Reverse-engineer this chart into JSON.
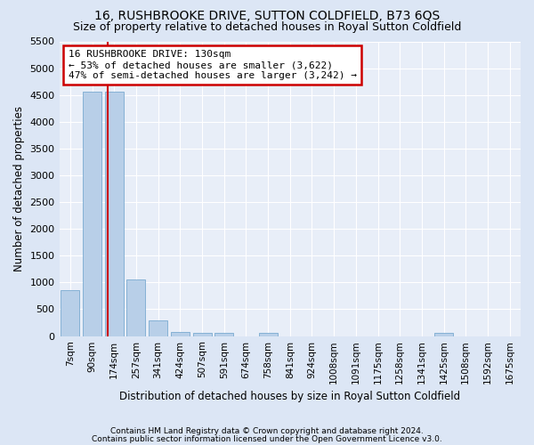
{
  "title": "16, RUSHBROOKE DRIVE, SUTTON COLDFIELD, B73 6QS",
  "subtitle": "Size of property relative to detached houses in Royal Sutton Coldfield",
  "xlabel": "Distribution of detached houses by size in Royal Sutton Coldfield",
  "ylabel": "Number of detached properties",
  "footnote1": "Contains HM Land Registry data © Crown copyright and database right 2024.",
  "footnote2": "Contains public sector information licensed under the Open Government Licence v3.0.",
  "bar_labels": [
    "7sqm",
    "90sqm",
    "174sqm",
    "257sqm",
    "341sqm",
    "424sqm",
    "507sqm",
    "591sqm",
    "674sqm",
    "758sqm",
    "841sqm",
    "924sqm",
    "1008sqm",
    "1091sqm",
    "1175sqm",
    "1258sqm",
    "1341sqm",
    "1425sqm",
    "1508sqm",
    "1592sqm",
    "1675sqm"
  ],
  "bar_values": [
    850,
    4560,
    4560,
    1060,
    290,
    80,
    60,
    55,
    0,
    60,
    0,
    0,
    0,
    0,
    0,
    0,
    0,
    55,
    0,
    0,
    0
  ],
  "bar_color": "#b8cfe8",
  "bar_edge_color": "#7aaad0",
  "vline_x_idx": 1.72,
  "vline_color": "#cc0000",
  "annotation_text": "16 RUSHBROOKE DRIVE: 130sqm\n← 53% of detached houses are smaller (3,622)\n47% of semi-detached houses are larger (3,242) →",
  "annotation_box_color": "#cc0000",
  "annotation_box_fill": "#ffffff",
  "ylim": [
    0,
    5500
  ],
  "yticks": [
    0,
    500,
    1000,
    1500,
    2000,
    2500,
    3000,
    3500,
    4000,
    4500,
    5000,
    5500
  ],
  "bg_color": "#dce6f5",
  "plot_bg_color": "#e8eef8",
  "grid_color": "#ffffff",
  "title_fontsize": 10,
  "subtitle_fontsize": 9
}
